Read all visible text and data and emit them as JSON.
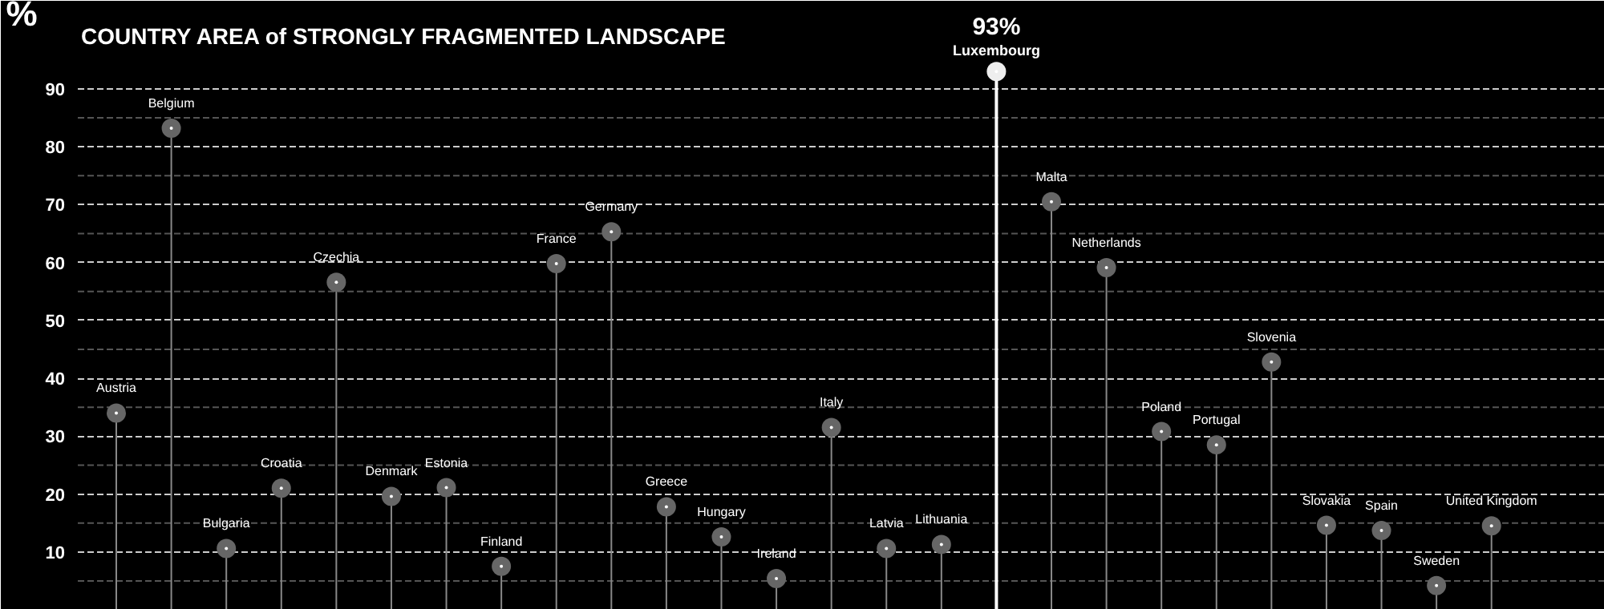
{
  "chart_data": {
    "type": "lollipop",
    "title": "COUNTRY AREA of STRONGLY FRAGMENTED LANDSCAPE",
    "ylabel": "%",
    "categories": [
      "Austria",
      "Belgium",
      "Bulgaria",
      "Croatia",
      "Czechia",
      "Denmark",
      "Estonia",
      "Finland",
      "France",
      "Germany",
      "Greece",
      "Hungary",
      "Ireland",
      "Italy",
      "Latvia",
      "Lithuania",
      "Luxembourg",
      "Malta",
      "Netherlands",
      "Poland",
      "Portugal",
      "Slovenia",
      "Slovakia",
      "Spain",
      "Sweden",
      "United Kingdom"
    ],
    "values": [
      34,
      83.2,
      10.6,
      21,
      56.6,
      19.6,
      21.1,
      7.5,
      59.8,
      65.3,
      17.8,
      12.6,
      5.4,
      31.5,
      10.6,
      11.3,
      93,
      70.5,
      59.1,
      30.8,
      28.5,
      42.8,
      14.6,
      13.7,
      4.2,
      14.5
    ],
    "value_labels": [
      null,
      null,
      null,
      null,
      null,
      null,
      null,
      null,
      null,
      null,
      null,
      null,
      null,
      null,
      null,
      null,
      "93%",
      null,
      null,
      null,
      null,
      null,
      null,
      null,
      null,
      null
    ],
    "colors": [
      "#666666",
      "#666666",
      "#666666",
      "#666666",
      "#666666",
      "#666666",
      "#666666",
      "#666666",
      "#666666",
      "#666666",
      "#666666",
      "#666666",
      "#666666",
      "#666666",
      "#666666",
      "#666666",
      "#eeeeee",
      "#666666",
      "#666666",
      "#666666",
      "#666666",
      "#666666",
      "#666666",
      "#666666",
      "#666666",
      "#666666"
    ],
    "ylim": [
      0,
      103
    ],
    "yticks": [
      {
        "value": 5,
        "label": null
      },
      10,
      {
        "value": 15,
        "label": null
      },
      20,
      {
        "value": 25,
        "label": null
      },
      30,
      {
        "value": 35,
        "label": null
      },
      40,
      {
        "value": 45,
        "label": null
      },
      50,
      {
        "value": 55,
        "label": null
      },
      60,
      {
        "value": 65,
        "label": null
      },
      70,
      {
        "value": 75,
        "label": null
      },
      80,
      {
        "value": 85,
        "label": null
      },
      90
    ],
    "grid": "y",
    "marker": "circle",
    "tick_labels": "y"
  }
}
